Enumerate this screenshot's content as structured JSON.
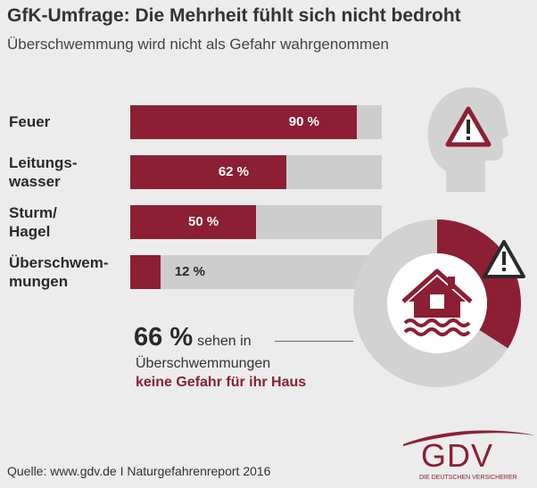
{
  "header": {
    "title": "GfK-Umfrage: Die Mehrheit fühlt sich nicht bedroht",
    "subtitle": "Überschwemmung wird nicht als Gefahr wahrgenommen"
  },
  "chart_data": [
    {
      "type": "bar",
      "orientation": "horizontal",
      "categories": [
        "Feuer",
        "Leitungs-\nwasser",
        "Sturm/\nHagel",
        "Überschwem-\nmungen"
      ],
      "values": [
        90,
        62,
        50,
        12
      ],
      "value_labels": [
        "90 %",
        "62 %",
        "50 %",
        "12 %"
      ],
      "xlim": [
        0,
        100
      ],
      "grid": false,
      "colors": {
        "fill": "#8c1f33",
        "track": "#cdcdcd"
      }
    },
    {
      "type": "pie",
      "style": "donut",
      "values": [
        34,
        66
      ],
      "colors": [
        "#8c1f33",
        "#d2d2d2"
      ]
    }
  ],
  "callout": {
    "number": "66 %",
    "after_number": "sehen in",
    "line2": "Überschwemmungen",
    "line3": "keine Gefahr für ihr Haus"
  },
  "icons": {
    "head": "head-warning-icon",
    "house": "flooded-house-icon",
    "warning": "warning-triangle-icon"
  },
  "source": "Quelle: www.gdv.de I Naturgefahrenreport 2016",
  "logo": {
    "text": "GDV",
    "subtitle": "DIE DEUTSCHEN VERSICHERER"
  },
  "colors": {
    "accent": "#8c1f33",
    "background": "#ececec",
    "gray": "#cdcdcd"
  }
}
